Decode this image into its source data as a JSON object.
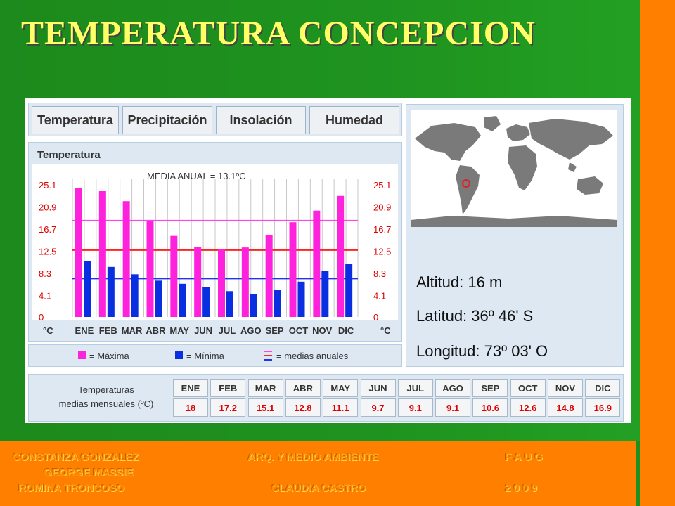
{
  "slide_title": "TEMPERATURA CONCEPCION",
  "tabs": [
    "Temperatura",
    "Precipitación",
    "Insolación",
    "Humedad"
  ],
  "geo": {
    "altitud": "Altitud: 16 m",
    "latitud": "Latitud: 36º 46' S",
    "longitud": "Longitud:  73º 03' O"
  },
  "legend": {
    "max_label": "= Máxima",
    "min_label": "= Mínima",
    "annual_label": "= medias anuales"
  },
  "monthly_table": {
    "label_line1": "Temperaturas",
    "label_line2": "medias mensuales (ºC)",
    "months": [
      "ENE",
      "FEB",
      "MAR",
      "ABR",
      "MAY",
      "JUN",
      "JUL",
      "AGO",
      "SEP",
      "OCT",
      "NOV",
      "DIC"
    ],
    "values": [
      "18",
      "17.2",
      "15.1",
      "12.8",
      "11.1",
      "9.7",
      "9.1",
      "9.1",
      "10.6",
      "12.6",
      "14.8",
      "16.9"
    ]
  },
  "footer": {
    "left1": "CONSTANZA GONZALEZ",
    "left2": "GEORGE MASSIE",
    "left3": "ROMINA TRONCOSO",
    "mid1": "ARQ. Y MEDIO AMBIENTE",
    "mid2": "CLAUDIA CASTRO",
    "right1": "F A U G",
    "right2": "2 0 0 9"
  },
  "colors": {
    "max_bar": "#ff22dd",
    "min_bar": "#0a2fe0",
    "line_max": "#ff44ee",
    "line_mean": "#ff2222",
    "line_min": "#2233ee"
  },
  "chart_data": {
    "type": "bar",
    "title": "Temperatura",
    "annotation": "MEDIA ANUAL = 13.1ºC",
    "categories": [
      "ENE",
      "FEB",
      "MAR",
      "ABR",
      "MAY",
      "JUN",
      "JUL",
      "AGO",
      "SEP",
      "OCT",
      "NOV",
      "DIC"
    ],
    "series": [
      {
        "name": "Máxima",
        "values": [
          24.5,
          23.9,
          22.0,
          18.2,
          15.4,
          13.3,
          12.8,
          13.2,
          15.6,
          18.0,
          20.2,
          23.0
        ]
      },
      {
        "name": "Mínima",
        "values": [
          10.6,
          9.5,
          8.1,
          6.9,
          6.3,
          5.7,
          4.9,
          4.3,
          5.1,
          6.7,
          8.7,
          10.1
        ]
      }
    ],
    "annual_lines": [
      18.3,
      12.7,
      7.3
    ],
    "yticks": [
      "25.1",
      "20.9",
      "16.7",
      "12.5",
      "8.3",
      "4.1",
      "0"
    ],
    "yunit": "°C",
    "ylim": [
      0,
      25.1
    ]
  }
}
